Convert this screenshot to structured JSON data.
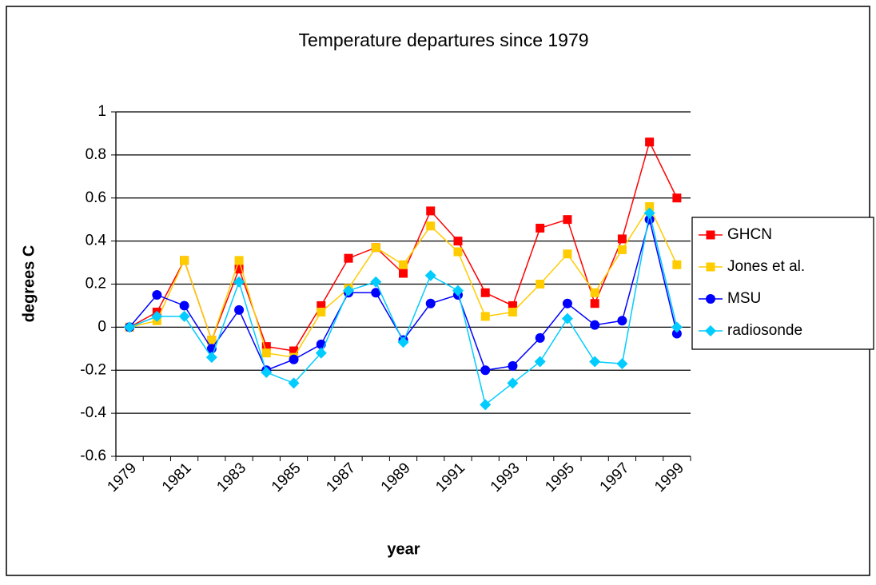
{
  "chart_data": {
    "type": "line",
    "title": "Temperature departures since 1979",
    "x_label": "year",
    "y_label": "degrees C",
    "categories": [
      "1979",
      null,
      "1981",
      null,
      "1983",
      null,
      "1985",
      null,
      "1987",
      null,
      "1989",
      null,
      "1991",
      null,
      "1993",
      null,
      "1995",
      null,
      "1997",
      null,
      "1999"
    ],
    "series": [
      {
        "name": "GHCN",
        "color": "#ff0000",
        "marker": "square",
        "values": [
          0,
          0.07,
          0.31,
          -0.06,
          0.27,
          -0.09,
          -0.11,
          0.1,
          0.32,
          0.37,
          0.25,
          0.54,
          0.4,
          0.16,
          0.1,
          0.46,
          0.5,
          0.11,
          0.41,
          0.86,
          0.6
        ]
      },
      {
        "name": "Jones et al.",
        "color": "#ffcc00",
        "marker": "square",
        "values": [
          0,
          0.03,
          0.31,
          -0.06,
          0.31,
          -0.12,
          -0.14,
          0.07,
          0.18,
          0.37,
          0.29,
          0.47,
          0.35,
          0.05,
          0.07,
          0.2,
          0.34,
          0.16,
          0.36,
          0.56,
          0.29
        ]
      },
      {
        "name": "MSU",
        "color": "#0000ff",
        "marker": "circle",
        "values": [
          0,
          0.15,
          0.1,
          -0.1,
          0.08,
          -0.2,
          -0.15,
          -0.08,
          0.16,
          0.16,
          -0.06,
          0.11,
          0.15,
          -0.2,
          -0.18,
          -0.05,
          0.11,
          0.01,
          0.03,
          0.5,
          -0.03
        ]
      },
      {
        "name": "radiosonde",
        "color": "#00ccff",
        "marker": "diamond",
        "values": [
          0,
          0.05,
          0.05,
          -0.14,
          0.21,
          -0.21,
          -0.26,
          -0.12,
          0.17,
          0.21,
          -0.07,
          0.24,
          0.17,
          -0.36,
          -0.26,
          -0.16,
          0.04,
          -0.16,
          -0.17,
          0.53,
          0.0
        ]
      }
    ],
    "ylim": [
      -0.6,
      1
    ],
    "yticks": [
      -0.6,
      -0.4,
      -0.2,
      0,
      0.2,
      0.4,
      0.6,
      0.8,
      1
    ],
    "grid": true,
    "legend": "right"
  }
}
